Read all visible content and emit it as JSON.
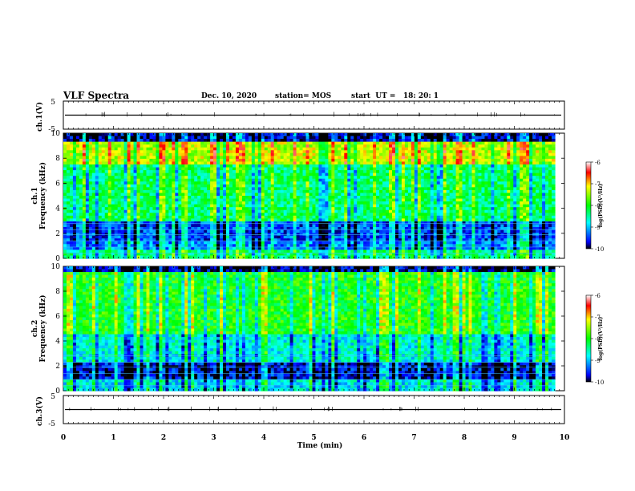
{
  "header": {
    "title": "VLF Spectra",
    "date": "Dec. 10, 2020",
    "station": "station= MOS",
    "start": "start  UT =   18: 20: 1"
  },
  "chart_data": [
    {
      "type": "line",
      "name": "ch1-waveform",
      "ylabel": "ch.1(V)",
      "yticks": [
        "5",
        "-5"
      ],
      "ylim": [
        -5,
        5
      ],
      "xlim": [
        0,
        10
      ],
      "series": [
        {
          "x": [
            0,
            10
          ],
          "y": [
            0,
            0
          ]
        }
      ]
    },
    {
      "type": "heatmap",
      "name": "ch1-spectrogram",
      "ylabel_top": "ch.1",
      "ylabel": "Frequency (kHz)",
      "yticks": [
        "0",
        "2",
        "4",
        "6",
        "8",
        "10"
      ],
      "ylim": [
        0,
        10
      ],
      "xlim": [
        0,
        9.85
      ],
      "colorbar": {
        "label": "log(PSD)(V²/Hz)",
        "ticks": [
          "-6",
          "-7",
          "-8",
          "-9",
          "-10"
        ],
        "range": [
          -10,
          -6
        ]
      }
    },
    {
      "type": "heatmap",
      "name": "ch2-spectrogram",
      "ylabel_top": "ch.2",
      "ylabel": "Frequency (kHz)",
      "yticks": [
        "0",
        "2",
        "4",
        "6",
        "8",
        "10"
      ],
      "ylim": [
        0,
        10
      ],
      "xlim": [
        0,
        9.85
      ],
      "colorbar": {
        "label": "log(PSD)(V²/Hz)",
        "ticks": [
          "-6",
          "-7",
          "-8",
          "-9",
          "-10"
        ],
        "range": [
          -10,
          -6
        ]
      }
    },
    {
      "type": "line",
      "name": "ch3-waveform",
      "ylabel": "ch.3(V)",
      "yticks": [
        "5",
        "-5"
      ],
      "ylim": [
        -5,
        5
      ],
      "xlim": [
        0,
        10
      ],
      "series": [
        {
          "x": [
            0,
            10
          ],
          "y": [
            0,
            0
          ]
        }
      ],
      "xlabel": "Time  (min)",
      "xticks": [
        "0",
        "1",
        "2",
        "3",
        "4",
        "5",
        "6",
        "7",
        "8",
        "9",
        "10"
      ]
    }
  ]
}
